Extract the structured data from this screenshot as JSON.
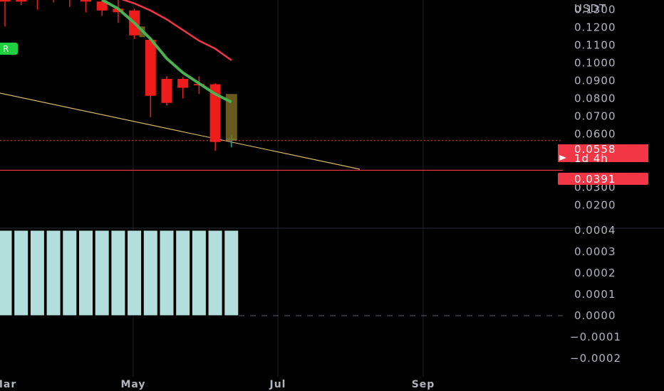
{
  "chart_data": [
    {
      "type": "candlestick",
      "ylabel": "USDT",
      "ylim": [
        0.017,
        0.1345
      ],
      "y_ticks": [
        "0.1300",
        "0.1200",
        "0.1100",
        "0.1000",
        "0.0900",
        "0.0800",
        "0.0700",
        "0.0600",
        "0.0300",
        "0.0200"
      ],
      "x_ticks": [
        "Mar",
        "May",
        "Jul",
        "Sep"
      ],
      "candles": [
        {
          "o": 0.136,
          "h": 0.136,
          "l": 0.12,
          "c": 0.134,
          "color": "#ef1c1c"
        },
        {
          "o": 0.134,
          "h": 0.136,
          "l": 0.132,
          "c": 0.136,
          "color": "#ef1c1c"
        },
        {
          "o": 0.1355,
          "h": 0.136,
          "l": 0.1295,
          "c": 0.136,
          "color": "#ef1c1c"
        },
        {
          "o": 0.136,
          "h": 0.136,
          "l": 0.1335,
          "c": 0.1355,
          "color": "#ef1c1c"
        },
        {
          "o": 0.136,
          "h": 0.136,
          "l": 0.131,
          "c": 0.136,
          "color": "#ef1c1c"
        },
        {
          "o": 0.136,
          "h": 0.136,
          "l": 0.128,
          "c": 0.134,
          "color": "#ef1c1c"
        },
        {
          "o": 0.134,
          "h": 0.136,
          "l": 0.126,
          "c": 0.129,
          "color": "#ef1c1c"
        },
        {
          "o": 0.13,
          "h": 0.135,
          "l": 0.122,
          "c": 0.128,
          "color": "#ef1c1c"
        },
        {
          "o": 0.129,
          "h": 0.13,
          "l": 0.113,
          "c": 0.115,
          "color": "#ef1c1c"
        },
        {
          "o": 0.1125,
          "h": 0.114,
          "l": 0.069,
          "c": 0.081,
          "color": "#ef1c1c"
        },
        {
          "o": 0.0905,
          "h": 0.092,
          "l": 0.0755,
          "c": 0.077,
          "color": "#ef1c1c"
        },
        {
          "o": 0.0905,
          "h": 0.0915,
          "l": 0.0795,
          "c": 0.0855,
          "color": "#ef1c1c"
        },
        {
          "o": 0.0876,
          "h": 0.092,
          "l": 0.082,
          "c": 0.0876,
          "color": "#ef1c1c"
        },
        {
          "o": 0.0875,
          "h": 0.088,
          "l": 0.05,
          "c": 0.055,
          "color": "#ef1c1c"
        },
        {
          "o": 0.057,
          "h": 0.059,
          "l": 0.052,
          "c": 0.0558,
          "color": "#26a69a"
        }
      ],
      "ema_green": [
        0.135,
        0.13,
        0.122,
        0.113,
        0.102,
        0.094,
        0.088,
        0.082,
        0.0775
      ],
      "ema_red": [
        0.136,
        0.133,
        0.129,
        0.124,
        0.118,
        0.112,
        0.1075,
        0.101
      ],
      "levels": {
        "current_price": "0.0558",
        "countdown": "1d 4h",
        "horizontal_level": "0.0391"
      },
      "colors": {
        "bear": "#ef1c1c",
        "bull": "#26a69a",
        "ema_fast": "#4caf50",
        "ema_slow": "#f23645",
        "trendline": "#d8b86a",
        "level": "#f23645"
      }
    },
    {
      "type": "bar",
      "ylim": [
        -0.0002,
        0.0004
      ],
      "y_ticks": [
        "0.0004",
        "0.0003",
        "0.0002",
        "0.0001",
        "0.0000",
        "−0.0001",
        "−0.0002"
      ],
      "values": [
        0.0004,
        0.0004,
        0.0004,
        0.0004,
        0.0004,
        0.0004,
        0.0004,
        0.0004,
        0.0004,
        0.0004,
        0.0004,
        0.0004,
        0.0004,
        0.0004,
        0.0004
      ],
      "colors": {
        "bar": "#b2dfdb",
        "zero_line": "#5d606b"
      }
    }
  ],
  "badge_label": "R"
}
